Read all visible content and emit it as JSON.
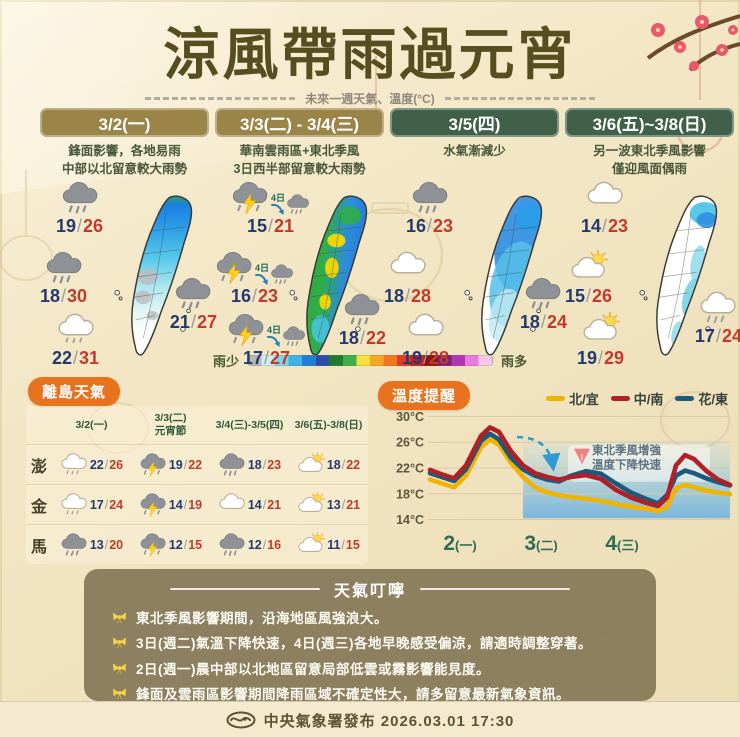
{
  "title": "涼風帶雨過元宵",
  "subtitle": "未來一週天氣、溫度(°C)",
  "columns": [
    {
      "header": "3/2(一)",
      "header_color": "#9a8448",
      "desc1": "鋒面影響，各地易雨",
      "desc2": "中部以北留意較大雨勢",
      "map_pattern": "north",
      "labels": {
        "tl": {
          "icon": "rain-cloud",
          "low": "19",
          "high": "26"
        },
        "ml": {
          "icon": "rain-cloud",
          "low": "18",
          "high": "30"
        },
        "r": {
          "icon": "rain-cloud",
          "low": "21",
          "high": "27"
        },
        "bl": {
          "icon": "drizzle-cloud",
          "low": "22",
          "high": "31"
        }
      }
    },
    {
      "header": "3/3(二) - 3/4(三)",
      "header_color": "#9a8448",
      "desc1": "華南雲雨區+東北季風",
      "desc2": "3日西半部留意較大雨勢",
      "map_pattern": "west",
      "labels": {
        "tl": {
          "icon": "thunderstorm",
          "low": "15",
          "high": "21",
          "next": {
            "label": "4日",
            "icon": "rain-cloud"
          }
        },
        "ml": {
          "icon": "thunderstorm",
          "low": "16",
          "high": "23",
          "next": {
            "label": "4日",
            "icon": "rain-cloud"
          }
        },
        "r": {
          "icon": "rain-cloud",
          "low": "18",
          "high": "22"
        },
        "bl": {
          "icon": "thunderstorm",
          "low": "17",
          "high": "27",
          "next": {
            "label": "4日",
            "icon": "rain-cloud"
          }
        }
      }
    },
    {
      "header": "3/5(四)",
      "header_color": "#41604a",
      "desc1": "水氣漸減少",
      "desc2": "",
      "map_pattern": "ne",
      "labels": {
        "tl": {
          "icon": "rain-cloud",
          "low": "16",
          "high": "23"
        },
        "ml": {
          "icon": "cloud",
          "low": "18",
          "high": "28"
        },
        "r": {
          "icon": "rain-cloud",
          "low": "18",
          "high": "24"
        },
        "bl": {
          "icon": "cloud",
          "low": "19",
          "high": "28"
        }
      }
    },
    {
      "header": "3/6(五)~3/8(日)",
      "header_color": "#41604a",
      "desc1": "另一波東北季風影響",
      "desc2": "僅迎風面偶雨",
      "map_pattern": "spots",
      "labels": {
        "tl": {
          "icon": "cloud",
          "low": "14",
          "high": "23"
        },
        "ml": {
          "icon": "sun-cloud",
          "low": "15",
          "high": "26"
        },
        "r": {
          "icon": "white-rain-cloud",
          "low": "17",
          "high": "24"
        },
        "bl": {
          "icon": "sun-cloud",
          "low": "19",
          "high": "29"
        }
      }
    }
  ],
  "rain_scale": {
    "less": "雨少",
    "more": "雨多",
    "colors": [
      "#b8b8b8",
      "#cdeef8",
      "#7dd6f0",
      "#3fb3e8",
      "#1f7fd6",
      "#2b4fa8",
      "#1e7c31",
      "#3fae46",
      "#f5e13a",
      "#f5a623",
      "#f07820",
      "#e03c28",
      "#c01f24",
      "#8c1510",
      "#7a1f7a",
      "#b435b4",
      "#e87ae0",
      "#f5c8ee"
    ]
  },
  "islands": {
    "badge": "離島天氣",
    "headers": [
      {
        "line1": "3/2(一)",
        "line2": ""
      },
      {
        "line1": "3/3(二)",
        "line2": "元宵節"
      },
      {
        "line1": "3/4(三)-3/5(四)",
        "line2": ""
      },
      {
        "line1": "3/6(五)-3/8(日)",
        "line2": ""
      }
    ],
    "rows": [
      {
        "name": "澎",
        "cells": [
          {
            "icon": "drizzle-cloud",
            "low": "22",
            "high": "26"
          },
          {
            "icon": "thunderstorm",
            "low": "19",
            "high": "22"
          },
          {
            "icon": "rain-cloud",
            "low": "18",
            "high": "23"
          },
          {
            "icon": "sun-cloud",
            "low": "18",
            "high": "22"
          }
        ]
      },
      {
        "name": "金",
        "cells": [
          {
            "icon": "drizzle-cloud",
            "low": "17",
            "high": "24"
          },
          {
            "icon": "thunderstorm",
            "low": "14",
            "high": "19"
          },
          {
            "icon": "cloud",
            "low": "14",
            "high": "21"
          },
          {
            "icon": "sun-cloud",
            "low": "13",
            "high": "21"
          }
        ]
      },
      {
        "name": "馬",
        "cells": [
          {
            "icon": "rain-cloud",
            "low": "13",
            "high": "20"
          },
          {
            "icon": "thunderstorm",
            "low": "12",
            "high": "15"
          },
          {
            "icon": "rain-cloud",
            "low": "12",
            "high": "16"
          },
          {
            "icon": "sun-cloud",
            "low": "11",
            "high": "15"
          }
        ]
      }
    ]
  },
  "temperature": {
    "badge": "溫度提醒"
  },
  "chart_data": {
    "type": "line",
    "title": "溫度提醒",
    "ylabel": "°C",
    "ylim": [
      13,
      31
    ],
    "yticks": [
      30,
      26,
      22,
      18,
      14
    ],
    "ytick_suffix": "°C",
    "grid": true,
    "legend_position": "top-right",
    "xlabels": [
      {
        "num": "2",
        "wk": "(一)",
        "pct": 10
      },
      {
        "num": "3",
        "wk": "(二)",
        "pct": 37
      },
      {
        "num": "4",
        "wk": "(三)",
        "pct": 64
      }
    ],
    "shade": {
      "start_pct": 31,
      "end_pct": 100,
      "top_temp": 26.3,
      "bottom_temp": 14.2
    },
    "annotation": {
      "line1": "東北季風增強",
      "line2": "溫度下降快速",
      "arrow": {
        "from_pct": 29,
        "from_temp": 26.8,
        "to_pct": 41,
        "to_temp": 22.2
      }
    },
    "series": [
      {
        "name": "北/宜",
        "color": "#f0b400",
        "points": [
          [
            0,
            20.2
          ],
          [
            4,
            19.6
          ],
          [
            8,
            19.0
          ],
          [
            12,
            20.8
          ],
          [
            17,
            25.2
          ],
          [
            20,
            26.4
          ],
          [
            23,
            25.6
          ],
          [
            27,
            22.8
          ],
          [
            31,
            20.6
          ],
          [
            35,
            19.0
          ],
          [
            39,
            18.2
          ],
          [
            43,
            17.8
          ],
          [
            47,
            17.5
          ],
          [
            52,
            17.2
          ],
          [
            57,
            16.9
          ],
          [
            62,
            16.4
          ],
          [
            67,
            16.0
          ],
          [
            72,
            15.7
          ],
          [
            76,
            15.3
          ],
          [
            79,
            16.0
          ],
          [
            82,
            18.8
          ],
          [
            85,
            19.4
          ],
          [
            88,
            19.0
          ],
          [
            92,
            18.5
          ],
          [
            96,
            18.2
          ],
          [
            100,
            17.9
          ]
        ]
      },
      {
        "name": "中/南",
        "color": "#b22027",
        "points": [
          [
            0,
            21.7
          ],
          [
            4,
            21.0
          ],
          [
            8,
            20.4
          ],
          [
            12,
            22.4
          ],
          [
            17,
            27.0
          ],
          [
            20,
            28.3
          ],
          [
            23,
            27.6
          ],
          [
            27,
            24.6
          ],
          [
            31,
            22.4
          ],
          [
            35,
            21.2
          ],
          [
            39,
            20.6
          ],
          [
            43,
            20.2
          ],
          [
            47,
            20.6
          ],
          [
            52,
            20.9
          ],
          [
            57,
            20.3
          ],
          [
            62,
            18.6
          ],
          [
            67,
            17.4
          ],
          [
            72,
            16.6
          ],
          [
            76,
            16.1
          ],
          [
            79,
            17.4
          ],
          [
            82,
            22.4
          ],
          [
            85,
            24.0
          ],
          [
            88,
            23.4
          ],
          [
            92,
            21.6
          ],
          [
            96,
            20.2
          ],
          [
            100,
            19.4
          ]
        ]
      },
      {
        "name": "花/東",
        "color": "#1c5a7d",
        "points": [
          [
            0,
            21.2
          ],
          [
            4,
            20.6
          ],
          [
            8,
            20.0
          ],
          [
            12,
            21.8
          ],
          [
            17,
            26.2
          ],
          [
            20,
            27.3
          ],
          [
            23,
            26.4
          ],
          [
            27,
            23.6
          ],
          [
            31,
            21.8
          ],
          [
            35,
            20.8
          ],
          [
            39,
            20.2
          ],
          [
            43,
            19.9
          ],
          [
            47,
            20.8
          ],
          [
            52,
            21.5
          ],
          [
            57,
            21.1
          ],
          [
            62,
            19.6
          ],
          [
            67,
            18.2
          ],
          [
            72,
            17.2
          ],
          [
            76,
            16.5
          ],
          [
            79,
            17.8
          ],
          [
            82,
            20.8
          ],
          [
            85,
            21.6
          ],
          [
            88,
            21.2
          ],
          [
            92,
            20.4
          ],
          [
            96,
            19.8
          ],
          [
            100,
            19.3
          ]
        ]
      }
    ]
  },
  "tips": {
    "title": "天氣叮嚀",
    "items": [
      "東北季風影響期間，沿海地區風強浪大。",
      "3日(週二)氣溫下降快速，4日(週三)各地早晚感受偏涼，請適時調整穿著。",
      "2日(週一)晨中部以北地區留意局部低雲或霧影響能見度。",
      "鋒面及雲雨區影響期間降雨區域不確定性大，請多留意最新氣象資訊。"
    ]
  },
  "footer": {
    "agency": "中央氣象署發布",
    "datetime": "2026.03.01 17:30"
  }
}
